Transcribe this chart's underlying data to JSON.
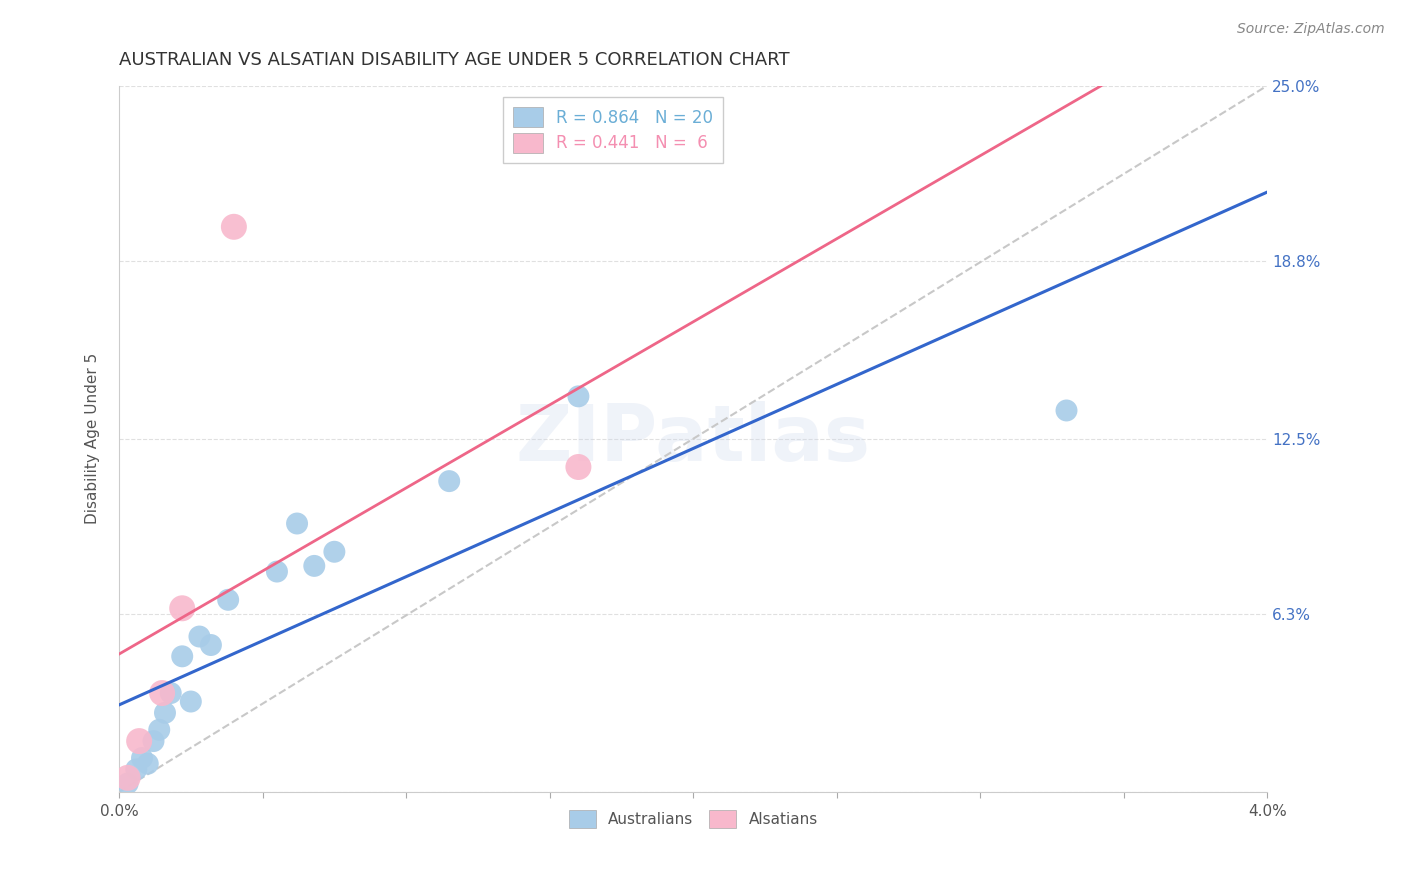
{
  "title": "AUSTRALIAN VS ALSATIAN DISABILITY AGE UNDER 5 CORRELATION CHART",
  "source": "Source: ZipAtlas.com",
  "ylabel": "Disability Age Under 5",
  "xmin": 0.0,
  "xmax": 4.0,
  "ymin": 0.0,
  "ymax": 25.0,
  "yticks": [
    0.0,
    6.3,
    12.5,
    18.8,
    25.0
  ],
  "ytick_labels": [
    "",
    "6.3%",
    "12.5%",
    "18.8%",
    "25.0%"
  ],
  "xticks": [
    0.0,
    0.5,
    1.0,
    1.5,
    2.0,
    2.5,
    3.0,
    3.5,
    4.0
  ],
  "legend_entries": [
    {
      "label": "R = 0.864   N = 20",
      "color": "#6baed6"
    },
    {
      "label": "R = 0.441   N =  6",
      "color": "#f48fb1"
    }
  ],
  "australian_x": [
    0.03,
    0.06,
    0.08,
    0.1,
    0.12,
    0.14,
    0.16,
    0.18,
    0.22,
    0.25,
    0.28,
    0.32,
    0.38,
    0.55,
    0.62,
    0.68,
    0.75,
    1.15,
    1.6,
    3.3
  ],
  "australian_y": [
    0.3,
    0.8,
    1.2,
    1.0,
    1.8,
    2.2,
    2.8,
    3.5,
    4.8,
    3.2,
    5.5,
    5.2,
    6.8,
    7.8,
    9.5,
    8.0,
    8.5,
    11.0,
    14.0,
    13.5
  ],
  "alsatian_x": [
    0.03,
    0.07,
    0.15,
    0.22,
    0.4,
    1.6
  ],
  "alsatian_y": [
    0.5,
    1.8,
    3.5,
    6.5,
    20.0,
    11.5
  ],
  "au_size": 250,
  "al_size": 350,
  "au_color": "#a8cce8",
  "al_color": "#f8b8cc",
  "au_line_color": "#3366cc",
  "al_line_color": "#ee6688",
  "diag_color": "#c8c8c8",
  "background": "#ffffff",
  "grid_color": "#e0e0e0",
  "watermark": "ZIPatlas"
}
